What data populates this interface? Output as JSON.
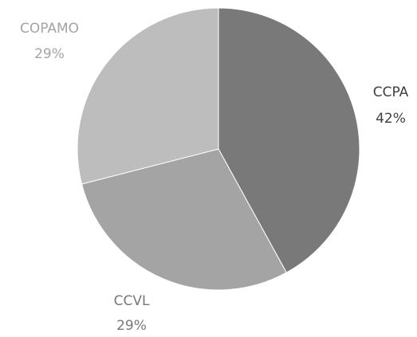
{
  "chart_data": {
    "type": "pie",
    "title": "",
    "slices": [
      {
        "label": "CCPA",
        "percent_label": "42%",
        "value": 42,
        "color": "#797979",
        "label_color": "#3f3f3f"
      },
      {
        "label": "CCVL",
        "percent_label": "29%",
        "value": 29,
        "color": "#a4a4a4",
        "label_color": "#777777"
      },
      {
        "label": "COPAMO",
        "percent_label": "29%",
        "value": 29,
        "color": "#bdbdbd",
        "label_color": "#a3a3a3"
      }
    ],
    "start_angle_deg": 0,
    "direction": "clockwise",
    "legend": "none"
  }
}
